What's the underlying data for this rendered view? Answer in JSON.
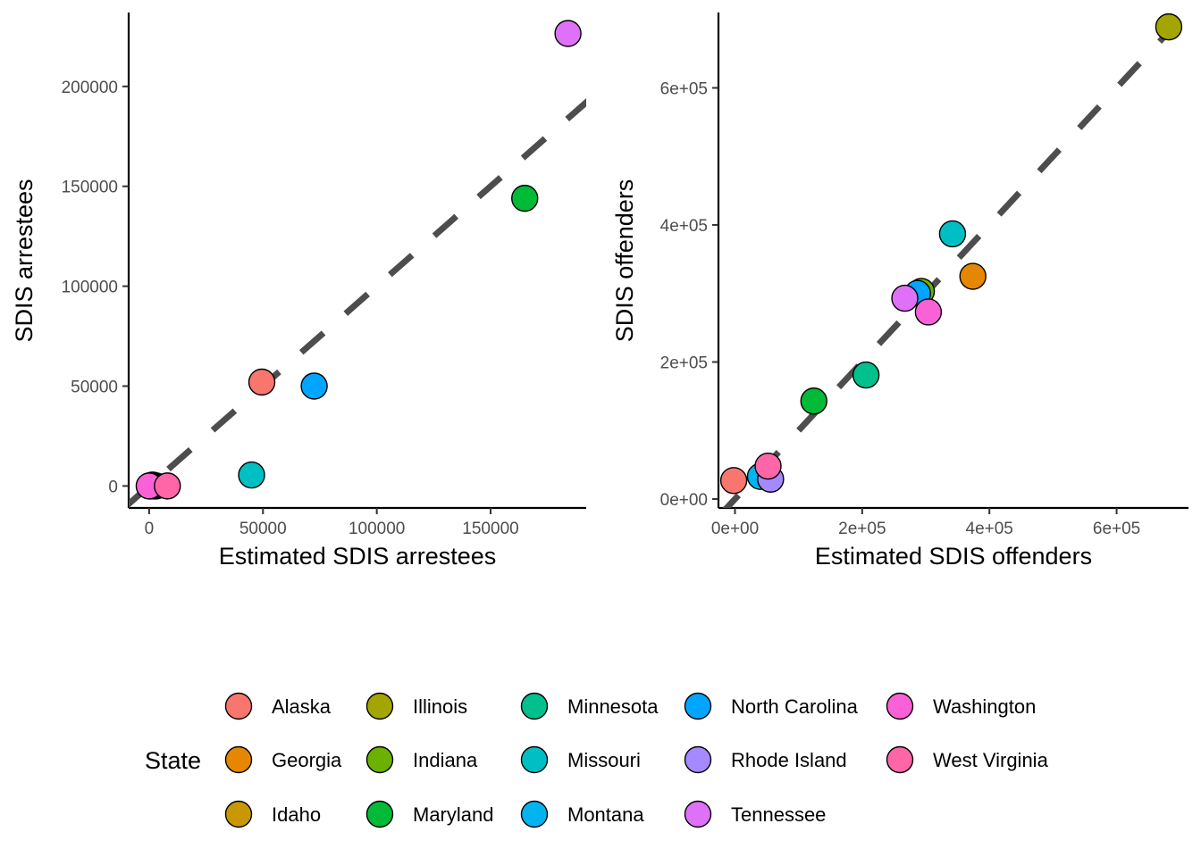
{
  "chart_data": [
    {
      "type": "scatter",
      "xlabel": "Estimated SDIS arrestees",
      "ylabel": "SDIS arrestees",
      "xlim": [
        -9000,
        192000
      ],
      "ylim": [
        -11000,
        237000
      ],
      "xticks": [
        0,
        50000,
        100000,
        150000
      ],
      "yticks": [
        0,
        50000,
        100000,
        150000,
        200000
      ],
      "xtick_labels": [
        "0",
        "50000",
        "100000",
        "150000"
      ],
      "ytick_labels": [
        "0",
        "50000",
        "100000",
        "150000",
        "200000"
      ],
      "reference_line": "y = x, dashed",
      "points": [
        {
          "state": "Alaska",
          "x": 49500,
          "y": 52000
        },
        {
          "state": "Georgia",
          "x": 3000,
          "y": 0
        },
        {
          "state": "Idaho",
          "x": 2500,
          "y": 0
        },
        {
          "state": "Illinois",
          "x": 1500,
          "y": 500
        },
        {
          "state": "Indiana",
          "x": 2000,
          "y": 0
        },
        {
          "state": "Maryland",
          "x": 165000,
          "y": 144000
        },
        {
          "state": "Missouri",
          "x": 45000,
          "y": 5500
        },
        {
          "state": "Montana",
          "x": 1000,
          "y": 0
        },
        {
          "state": "North Carolina",
          "x": 72500,
          "y": 50000
        },
        {
          "state": "Rhode Island",
          "x": 500,
          "y": 0
        },
        {
          "state": "Tennessee",
          "x": 184000,
          "y": 226500
        },
        {
          "state": "Washington",
          "x": 0,
          "y": 0
        },
        {
          "state": "West Virginia",
          "x": 8000,
          "y": 0
        }
      ]
    },
    {
      "type": "scatter",
      "xlabel": "Estimated SDIS offenders",
      "ylabel": "SDIS offenders",
      "xlim": [
        -26000,
        713000
      ],
      "ylim": [
        -13000,
        710000
      ],
      "xticks": [
        0,
        200000,
        400000,
        600000
      ],
      "yticks": [
        0,
        200000,
        400000,
        600000
      ],
      "xtick_labels": [
        "0e+00",
        "2e+05",
        "4e+05",
        "6e+05"
      ],
      "ytick_labels": [
        "0e+00",
        "2e+05",
        "4e+05",
        "6e+05"
      ],
      "reference_line": "y = x, dashed",
      "points": [
        {
          "state": "Alaska",
          "x": -2000,
          "y": 27000
        },
        {
          "state": "Georgia",
          "x": 374000,
          "y": 325000
        },
        {
          "state": "Idaho",
          "x": 45000,
          "y": 36000
        },
        {
          "state": "Illinois",
          "x": 682000,
          "y": 689000
        },
        {
          "state": "Indiana",
          "x": 293000,
          "y": 303000
        },
        {
          "state": "Maryland",
          "x": 124000,
          "y": 143000
        },
        {
          "state": "Minnesota",
          "x": 206000,
          "y": 181000
        },
        {
          "state": "Missouri",
          "x": 342000,
          "y": 387000
        },
        {
          "state": "Montana",
          "x": 40000,
          "y": 33000
        },
        {
          "state": "North Carolina",
          "x": 287000,
          "y": 300000
        },
        {
          "state": "Rhode Island",
          "x": 56000,
          "y": 29000
        },
        {
          "state": "Tennessee",
          "x": 267000,
          "y": 293000
        },
        {
          "state": "Washington",
          "x": 304000,
          "y": 273000
        },
        {
          "state": "West Virginia",
          "x": 52000,
          "y": 48000
        }
      ]
    }
  ],
  "legend": {
    "title": "State",
    "entries": [
      {
        "label": "Alaska",
        "color": "#F8766D"
      },
      {
        "label": "Georgia",
        "color": "#E58700"
      },
      {
        "label": "Idaho",
        "color": "#C99800"
      },
      {
        "label": "Illinois",
        "color": "#A3A500"
      },
      {
        "label": "Indiana",
        "color": "#6BB100"
      },
      {
        "label": "Maryland",
        "color": "#00BA38"
      },
      {
        "label": "Minnesota",
        "color": "#00C08B"
      },
      {
        "label": "Missouri",
        "color": "#00BFC4"
      },
      {
        "label": "Montana",
        "color": "#00B4F0"
      },
      {
        "label": "North Carolina",
        "color": "#00A5FF"
      },
      {
        "label": "Rhode Island",
        "color": "#A58AFF"
      },
      {
        "label": "Tennessee",
        "color": "#DF70F8"
      },
      {
        "label": "Washington",
        "color": "#FB61D7"
      },
      {
        "label": "West Virginia",
        "color": "#FF66A8"
      }
    ]
  }
}
